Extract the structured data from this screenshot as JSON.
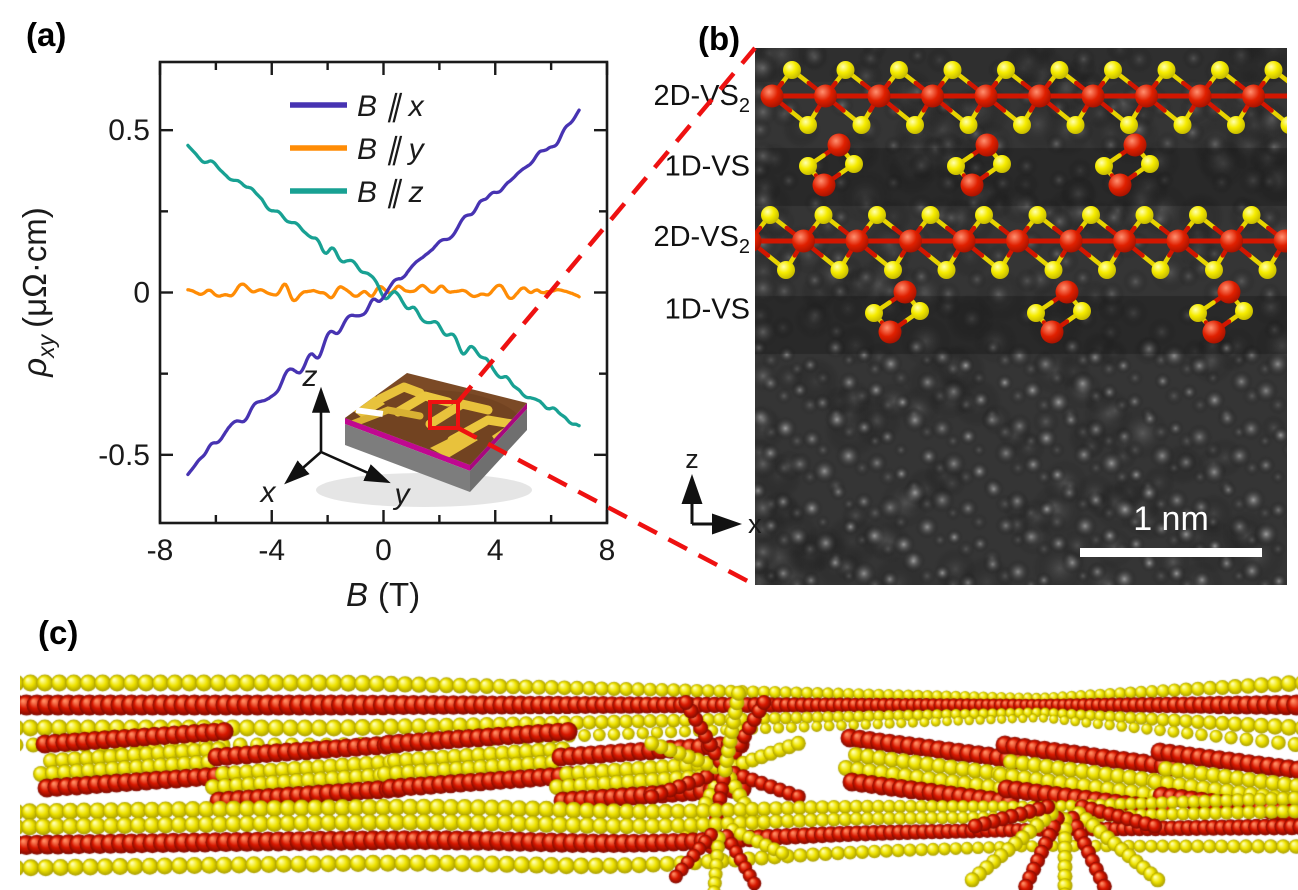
{
  "figure": {
    "panel_a": {
      "label": "(a)",
      "inset": {
        "axis_x": "x",
        "axis_y": "y",
        "axis_z": "z"
      }
    },
    "panel_b": {
      "label": "(b)",
      "layers": [
        {
          "base": "2D-VS",
          "sub": "2"
        },
        {
          "base": "1D-VS",
          "sub": ""
        },
        {
          "base": "2D-VS",
          "sub": "2"
        },
        {
          "base": "1D-VS",
          "sub": ""
        }
      ],
      "axis_z": "z",
      "axis_x": "x",
      "scale_bar_label": "1 nm"
    },
    "panel_c": {
      "label": "(c)"
    }
  },
  "colors": {
    "connector_red": "#ee1111",
    "vanadium_red": "#cc1500",
    "sulfur_yellow": "#eadf00",
    "device_gold": "#e8c23c",
    "device_brown": "#7b4a26",
    "device_magenta": "#c00890",
    "device_gray": "#7d7d7d"
  },
  "chart_data": {
    "type": "line",
    "title": "",
    "xlabel": "B (T)",
    "ylabel": "ρxy (μΩ·cm)",
    "xlabel_symbol": "B",
    "xlabel_units": "(T)",
    "ylabel_symbol": "ρ",
    "ylabel_sub": "xy",
    "ylabel_units": "(μΩ·cm)",
    "xlim": [
      -8,
      8
    ],
    "ylim": [
      -0.71,
      0.71
    ],
    "xticks": [
      -8,
      -4,
      0,
      4,
      8
    ],
    "xtick_labels": [
      "-8",
      "-4",
      "0",
      "4",
      "8"
    ],
    "xticks_minor": [
      -6,
      -2,
      2,
      6
    ],
    "yticks": [
      0.5,
      0,
      -0.5
    ],
    "ytick_labels": [
      "0.5",
      "0",
      "-0.5"
    ],
    "yticks_minor": [
      0.25,
      -0.25
    ],
    "grid": false,
    "legend_position": "upper-center-inside",
    "series": [
      {
        "name": "B ∥ x",
        "color": "#4733b2",
        "x": [
          -7,
          7
        ],
        "y": [
          -0.535,
          0.535
        ],
        "noise": 0.013
      },
      {
        "name": "B ∥ y",
        "color": "#ff8c05",
        "x": [
          -7,
          7
        ],
        "y": [
          0.0,
          0.0
        ],
        "noise": 0.013
      },
      {
        "name": "B ∥ z",
        "color": "#18a193",
        "x": [
          -7,
          7
        ],
        "y": [
          0.45,
          -0.425
        ],
        "noise": 0.013
      }
    ]
  }
}
